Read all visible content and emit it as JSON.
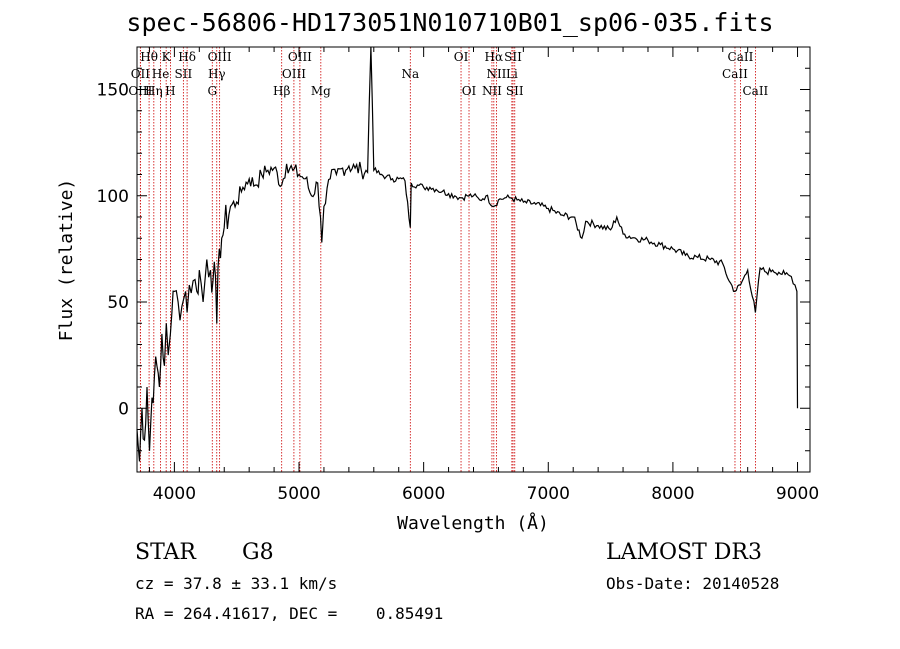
{
  "chart_data": {
    "type": "line",
    "title": "spec-56806-HD173051N010710B01_sp06-035.fits",
    "xlabel": "Wavelength (Å)",
    "ylabel": "Flux (relative)",
    "xlim": [
      3700,
      9100
    ],
    "ylim": [
      -30,
      170
    ],
    "x_ticks": [
      4000,
      5000,
      6000,
      7000,
      8000,
      9000
    ],
    "x_tick_labels": [
      "4000",
      "5000",
      "6000",
      "7000",
      "8000",
      "9000"
    ],
    "y_ticks": [
      0,
      50,
      100,
      150
    ],
    "y_tick_labels": [
      "0",
      "50",
      "100",
      "150"
    ],
    "grid": false,
    "series": [
      {
        "x": [
          3700,
          3720,
          3740,
          3760,
          3780,
          3800,
          3820,
          3840,
          3860,
          3880,
          3900,
          3920,
          3935,
          3950,
          3968,
          3980,
          4000,
          4030,
          4060,
          4090,
          4102,
          4120,
          4150,
          4180,
          4200,
          4230,
          4260,
          4290,
          4310,
          4330,
          4340,
          4360,
          4380,
          4400,
          4450,
          4500,
          4550,
          4600,
          4650,
          4700,
          4750,
          4800,
          4861,
          4900,
          4950,
          5000,
          5050,
          5100,
          5150,
          5172,
          5183,
          5200,
          5250,
          5300,
          5350,
          5400,
          5450,
          5500,
          5550,
          5577,
          5600,
          5650,
          5700,
          5750,
          5800,
          5850,
          5893,
          5900,
          5950,
          6000,
          6050,
          6100,
          6150,
          6200,
          6250,
          6300,
          6350,
          6400,
          6450,
          6500,
          6563,
          6600,
          6650,
          6700,
          6750,
          6800,
          6900,
          7000,
          7100,
          7200,
          7270,
          7300,
          7400,
          7500,
          7550,
          7600,
          7700,
          7800,
          7900,
          8000,
          8100,
          8200,
          8300,
          8400,
          8450,
          8498,
          8542,
          8600,
          8662,
          8700,
          8750,
          8800,
          8850,
          8900,
          8950,
          8980,
          8995,
          9000
        ],
        "y": [
          -10,
          -25,
          0,
          -15,
          10,
          -20,
          5,
          15,
          20,
          10,
          35,
          20,
          40,
          25,
          35,
          45,
          55,
          50,
          48,
          55,
          45,
          58,
          60,
          55,
          65,
          50,
          70,
          65,
          60,
          62,
          40,
          75,
          80,
          85,
          95,
          97,
          104,
          108,
          105,
          110,
          112,
          113,
          105,
          115,
          112,
          110,
          108,
          100,
          106,
          90,
          78,
          95,
          108,
          110,
          113,
          114,
          113,
          112,
          111,
          175,
          112,
          110,
          109,
          108,
          108,
          107,
          85,
          106,
          105,
          104,
          104,
          103,
          102,
          101,
          100,
          99,
          100,
          100,
          98,
          100,
          95,
          98,
          99,
          99,
          98,
          97,
          96,
          94,
          91,
          90,
          80,
          88,
          86,
          84,
          90,
          82,
          80,
          79,
          77,
          75,
          72,
          71,
          70,
          68,
          60,
          55,
          58,
          65,
          45,
          66,
          64,
          65,
          64,
          63,
          62,
          58,
          55,
          0
        ]
      }
    ],
    "spectral_lines": [
      {
        "label": "Hθ",
        "x": 3797,
        "row": 0
      },
      {
        "label": "K",
        "x": 3934,
        "row": 0
      },
      {
        "label": "Hδ",
        "x": 4102,
        "row": 0
      },
      {
        "label": "OIII",
        "x": 4363,
        "row": 0
      },
      {
        "label": "OIII",
        "x": 5007,
        "row": 0
      },
      {
        "label": "OI",
        "x": 6300,
        "row": 0
      },
      {
        "label": "Hα",
        "x": 6563,
        "row": 0
      },
      {
        "label": "SII",
        "x": 6717,
        "row": 0
      },
      {
        "label": "CaII",
        "x": 8542,
        "row": 0
      },
      {
        "label": "OII",
        "x": 3727,
        "row": 1
      },
      {
        "label": "He",
        "x": 3889,
        "row": 1
      },
      {
        "label": "SII",
        "x": 4072,
        "row": 1
      },
      {
        "label": "Hγ",
        "x": 4340,
        "row": 1
      },
      {
        "label": "OIII",
        "x": 4959,
        "row": 1
      },
      {
        "label": "Na",
        "x": 5893,
        "row": 1
      },
      {
        "label": "NII",
        "x": 6584,
        "row": 1
      },
      {
        "label": "Li",
        "x": 6708,
        "row": 1
      },
      {
        "label": "CaII",
        "x": 8498,
        "row": 1
      },
      {
        "label": "OIII",
        "x": 3727,
        "row": 2
      },
      {
        "label": "Hη",
        "x": 3835,
        "row": 2
      },
      {
        "label": "H",
        "x": 3968,
        "row": 2
      },
      {
        "label": "G",
        "x": 4304,
        "row": 2
      },
      {
        "label": "Hβ",
        "x": 4861,
        "row": 2
      },
      {
        "label": "Mg",
        "x": 5175,
        "row": 2
      },
      {
        "label": "OI",
        "x": 6364,
        "row": 2
      },
      {
        "label": "NII",
        "x": 6548,
        "row": 2
      },
      {
        "label": "SII",
        "x": 6731,
        "row": 2
      },
      {
        "label": "CaII",
        "x": 8662,
        "row": 2
      }
    ],
    "spectral_line_color": "#cc0000",
    "line_color": "#000000"
  },
  "info": {
    "object_type": "STAR",
    "subclass": "G8",
    "survey": "LAMOST DR3",
    "redshift": "cz = 37.8 ± 33.1 km/s",
    "obs_date": "Obs-Date: 20140528",
    "coords": "RA = 264.41617, DEC =    0.85491"
  }
}
